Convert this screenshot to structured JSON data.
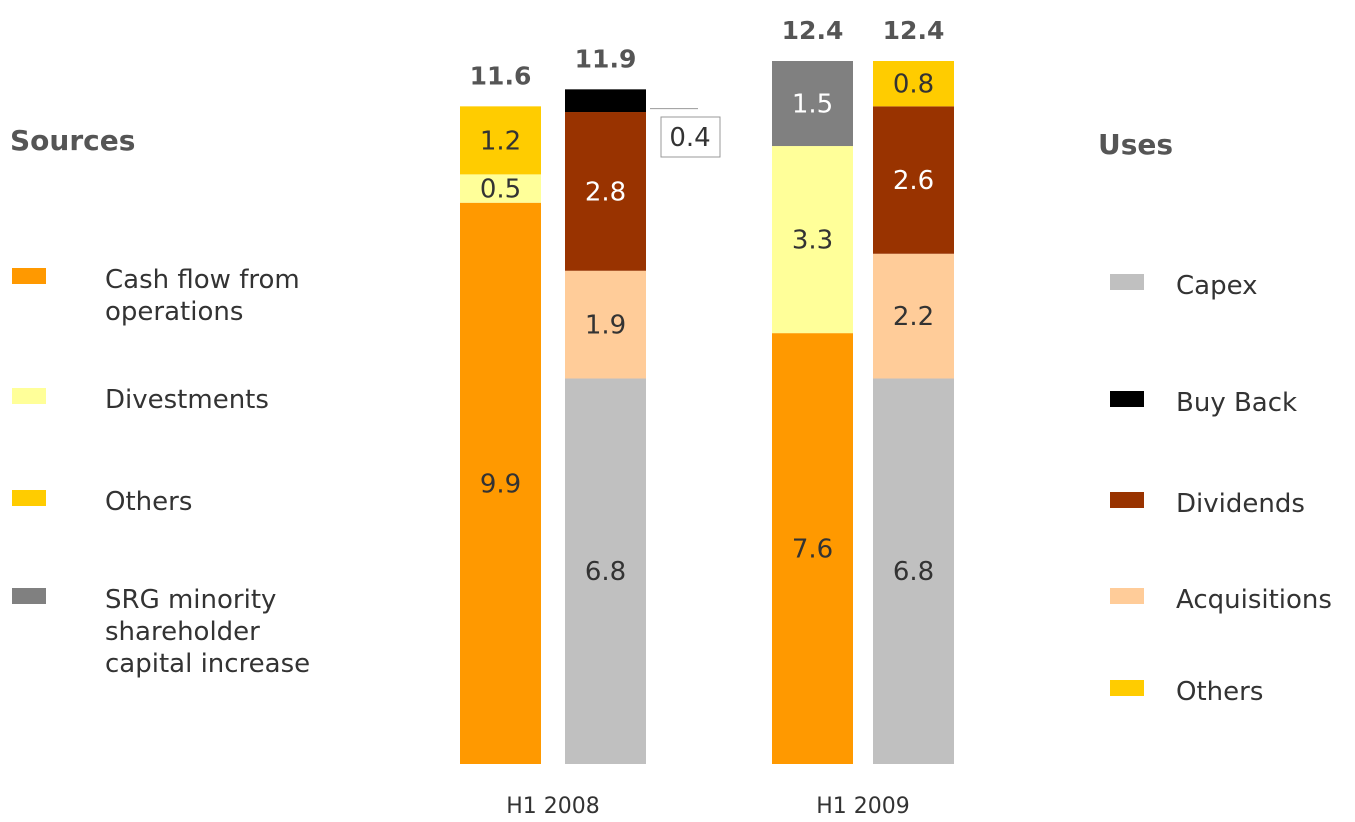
{
  "sources_heading": "Sources",
  "uses_heading": "Uses",
  "sources_legend": [
    {
      "label": "Cash flow from\noperations",
      "color": "#FF9900"
    },
    {
      "label": "Divestments",
      "color": "#FFFF99"
    },
    {
      "label": "Others",
      "color": "#FFCC00"
    },
    {
      "label": "SRG minority\nshareholder\ncapital increase",
      "color": "#808080"
    }
  ],
  "uses_legend": [
    {
      "label": "Capex",
      "color": "#C0C0C0"
    },
    {
      "label": "Buy Back",
      "color": "#000000"
    },
    {
      "label": "Dividends",
      "color": "#993300"
    },
    {
      "label": "Acquisitions",
      "color": "#FFCC99"
    },
    {
      "label": "Others",
      "color": "#FFCC00"
    }
  ],
  "chart_data": {
    "type": "bar",
    "stacked": true,
    "categories": [
      "H1 2008",
      "H1 2009"
    ],
    "ylim": [
      0,
      12.4
    ],
    "stacks": [
      {
        "category": "H1 2008",
        "side": "Sources",
        "total": "11.6",
        "segments": [
          {
            "name": "Cash flow from operations",
            "value": 9.9,
            "label": "9.9",
            "color": "#FF9900",
            "text_color": "#333333"
          },
          {
            "name": "Divestments",
            "value": 0.5,
            "label": "0.5",
            "color": "#FFFF99",
            "text_color": "#333333"
          },
          {
            "name": "Others",
            "value": 1.2,
            "label": "1.2",
            "color": "#FFCC00",
            "text_color": "#333333"
          }
        ]
      },
      {
        "category": "H1 2008",
        "side": "Uses",
        "total": "11.9",
        "segments": [
          {
            "name": "Capex",
            "value": 6.8,
            "label": "6.8",
            "color": "#C0C0C0",
            "text_color": "#333333"
          },
          {
            "name": "Acquisitions",
            "value": 1.9,
            "label": "1.9",
            "color": "#FFCC99",
            "text_color": "#333333"
          },
          {
            "name": "Dividends",
            "value": 2.8,
            "label": "2.8",
            "color": "#993300",
            "text_color": "#ffffff"
          },
          {
            "name": "Buy Back",
            "value": 0.4,
            "label": "0.4",
            "color": "#000000",
            "text_color": "#333333",
            "callout": true
          }
        ]
      },
      {
        "category": "H1 2009",
        "side": "Sources",
        "total": "12.4",
        "segments": [
          {
            "name": "Cash flow from operations",
            "value": 7.6,
            "label": "7.6",
            "color": "#FF9900",
            "text_color": "#333333"
          },
          {
            "name": "Divestments",
            "value": 3.3,
            "label": "3.3",
            "color": "#FFFF99",
            "text_color": "#333333"
          },
          {
            "name": "SRG minority shareholder capital increase",
            "value": 1.5,
            "label": "1.5",
            "color": "#808080",
            "text_color": "#ffffff"
          }
        ]
      },
      {
        "category": "H1 2009",
        "side": "Uses",
        "total": "12.4",
        "segments": [
          {
            "name": "Capex",
            "value": 6.8,
            "label": "6.8",
            "color": "#C0C0C0",
            "text_color": "#333333"
          },
          {
            "name": "Acquisitions",
            "value": 2.2,
            "label": "2.2",
            "color": "#FFCC99",
            "text_color": "#333333"
          },
          {
            "name": "Dividends",
            "value": 2.6,
            "label": "2.6",
            "color": "#993300",
            "text_color": "#ffffff"
          },
          {
            "name": "Others",
            "value": 0.8,
            "label": "0.8",
            "color": "#FFCC00",
            "text_color": "#333333"
          }
        ]
      }
    ]
  }
}
